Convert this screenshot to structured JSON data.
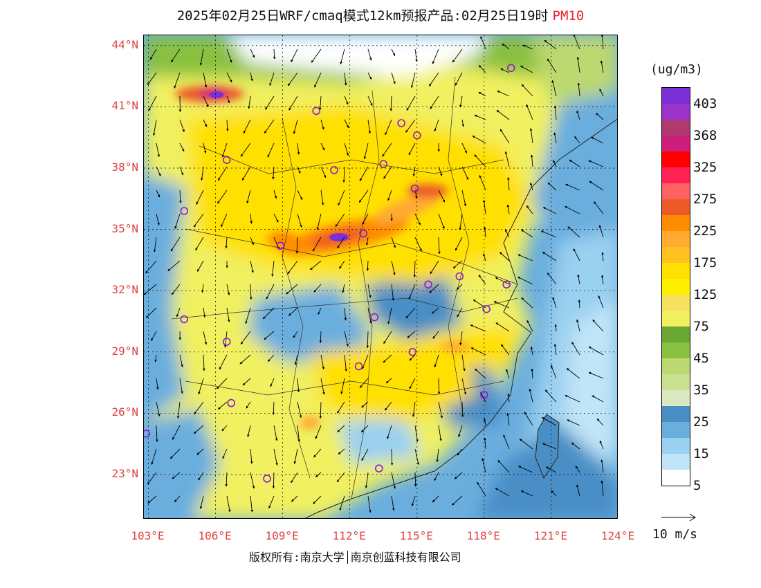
{
  "title": {
    "text": "2025年02月25日WRF/cmaq模式12km预报产品:02月25日19时",
    "pollutant": "PM10"
  },
  "lat_labels": [
    "44°N",
    "41°N",
    "38°N",
    "35°N",
    "32°N",
    "29°N",
    "26°N",
    "23°N"
  ],
  "lon_labels": [
    "103°E",
    "106°E",
    "109°E",
    "112°E",
    "115°E",
    "118°E",
    "121°E",
    "124°E"
  ],
  "legend": {
    "unit": "(ug/m3)",
    "labels": [
      "403",
      "368",
      "325",
      "275",
      "225",
      "175",
      "125",
      "75",
      "45",
      "35",
      "25",
      "15",
      "5"
    ],
    "colors": [
      "#7b2fd6",
      "#9933cc",
      "#b03a6e",
      "#cc1e7a",
      "#ff0000",
      "#ff2255",
      "#ff6060",
      "#ec5a28",
      "#ff8c00",
      "#ffaa30",
      "#ffc020",
      "#ffe000",
      "#fff000",
      "#f5e060",
      "#f0f060",
      "#6aa832",
      "#88c040",
      "#bcd870",
      "#c8e090",
      "#dce8c0",
      "#4a8ec6",
      "#6aaede",
      "#9ad0f0",
      "#c0e4f8",
      "#ffffff"
    ]
  },
  "wind_reference": "10 m/s",
  "credit": {
    "left": "版权所有:南京大学",
    "right": "南京创蓝科技有限公司"
  },
  "city_markers": [
    {
      "lon": 119.2,
      "lat": 42.9
    },
    {
      "lon": 110.5,
      "lat": 40.8
    },
    {
      "lon": 114.3,
      "lat": 40.2
    },
    {
      "lon": 115.0,
      "lat": 39.6
    },
    {
      "lon": 106.5,
      "lat": 38.4
    },
    {
      "lon": 111.3,
      "lat": 37.9
    },
    {
      "lon": 113.5,
      "lat": 38.2
    },
    {
      "lon": 114.9,
      "lat": 37.0
    },
    {
      "lon": 104.6,
      "lat": 35.9
    },
    {
      "lon": 108.9,
      "lat": 34.2
    },
    {
      "lon": 112.6,
      "lat": 34.8
    },
    {
      "lon": 115.5,
      "lat": 32.3
    },
    {
      "lon": 116.9,
      "lat": 32.7
    },
    {
      "lon": 119.0,
      "lat": 32.3
    },
    {
      "lon": 104.6,
      "lat": 30.6
    },
    {
      "lon": 113.1,
      "lat": 30.7
    },
    {
      "lon": 118.1,
      "lat": 31.1
    },
    {
      "lon": 106.5,
      "lat": 29.5
    },
    {
      "lon": 112.4,
      "lat": 28.3
    },
    {
      "lon": 114.8,
      "lat": 29.0
    },
    {
      "lon": 106.7,
      "lat": 26.5
    },
    {
      "lon": 118.0,
      "lat": 26.9
    },
    {
      "lon": 102.9,
      "lat": 25.0
    },
    {
      "lon": 108.3,
      "lat": 22.8
    },
    {
      "lon": 113.3,
      "lat": 23.3
    }
  ],
  "map_extent": {
    "lon_min": 102.8,
    "lon_max": 124.0,
    "lat_min": 20.8,
    "lat_max": 44.5
  }
}
